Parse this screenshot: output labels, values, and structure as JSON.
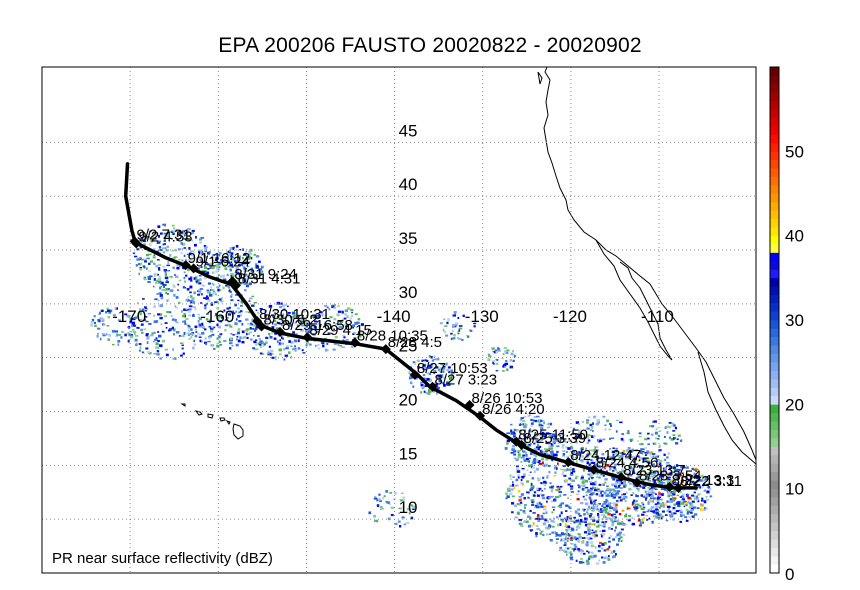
{
  "title": "EPA 200206 FAUSTO 20020822 - 20020902",
  "caption": "PR near surface reflectivity (dBZ)",
  "map": {
    "lon_range": [
      -180,
      -99
    ],
    "lat_range": [
      5,
      52
    ],
    "lon_ticks": [
      -170,
      -160,
      -150,
      -140,
      -130,
      -120,
      -110
    ],
    "lon_tick_labels": [
      "-170",
      "-160",
      "",
      "-140",
      "-130",
      "-120",
      "-110"
    ],
    "lat_ticks": [
      10,
      15,
      20,
      25,
      30,
      35,
      40,
      45
    ],
    "lat_tick_labels": [
      "10",
      "15",
      "20",
      "25",
      "30",
      "35",
      "40",
      "45"
    ],
    "grid": true
  },
  "track": {
    "path": [
      [
        -170.3,
        43.0
      ],
      [
        -170.5,
        40.0
      ],
      [
        -169.8,
        36.8
      ],
      [
        -169.4,
        35.7
      ],
      [
        -166.0,
        34.3
      ],
      [
        -163.5,
        33.5
      ],
      [
        -161.0,
        32.5
      ],
      [
        -158.5,
        31.8
      ],
      [
        -156.8,
        30.0
      ],
      [
        -155.2,
        28.0
      ],
      [
        -153.0,
        27.3
      ],
      [
        -150.0,
        26.8
      ],
      [
        -144.5,
        26.3
      ],
      [
        -141.0,
        25.8
      ],
      [
        -137.5,
        23.5
      ],
      [
        -136.0,
        22.3
      ],
      [
        -133.0,
        21.0
      ],
      [
        -130.5,
        19.6
      ],
      [
        -128.5,
        18.3
      ],
      [
        -126.0,
        17.0
      ],
      [
        -123.5,
        16.0
      ],
      [
        -120.5,
        15.3
      ],
      [
        -117.5,
        14.6
      ],
      [
        -114.0,
        13.8
      ],
      [
        -111.0,
        13.2
      ],
      [
        -108.5,
        12.9
      ],
      [
        -105.8,
        12.9
      ]
    ],
    "points": [
      {
        "label": "9/2 7:31",
        "lon": -169.5,
        "lat": 35.8
      },
      {
        "label": "9/2 4:53",
        "lon": -169.3,
        "lat": 35.6
      },
      {
        "label": "9/1 16:12",
        "lon": -163.7,
        "lat": 33.6
      },
      {
        "label": "9/1 6:24",
        "lon": -162.8,
        "lat": 33.3
      },
      {
        "label": "8/31 9:24",
        "lon": -158.4,
        "lat": 32.1
      },
      {
        "label": "8/31 4:31",
        "lon": -158.0,
        "lat": 31.7
      },
      {
        "label": "8/30 10:31",
        "lon": -155.6,
        "lat": 28.4
      },
      {
        "label": "8/30 6:2",
        "lon": -155.1,
        "lat": 27.9
      },
      {
        "label": "8/29 16:58",
        "lon": -153.0,
        "lat": 27.4
      },
      {
        "label": "8/29 4:15",
        "lon": -149.9,
        "lat": 26.9
      },
      {
        "label": "8/28 10:35",
        "lon": -144.5,
        "lat": 26.4
      },
      {
        "label": "8/28 4:5",
        "lon": -141.0,
        "lat": 25.8
      },
      {
        "label": "8/27 10:53",
        "lon": -137.7,
        "lat": 23.4
      },
      {
        "label": "8/27 3:23",
        "lon": -135.7,
        "lat": 22.3
      },
      {
        "label": "8/26 10:53",
        "lon": -131.5,
        "lat": 20.6
      },
      {
        "label": "8/26 4:20",
        "lon": -130.3,
        "lat": 19.6
      },
      {
        "label": "8/25 11:50",
        "lon": -126.2,
        "lat": 17.2
      },
      {
        "label": "8/25 3:39",
        "lon": -125.6,
        "lat": 16.9
      },
      {
        "label": "8/24 12:47",
        "lon": -120.3,
        "lat": 15.3
      },
      {
        "label": "8/24 4:56",
        "lon": -117.4,
        "lat": 14.6
      },
      {
        "label": "8/23 13:7",
        "lon": -114.3,
        "lat": 13.9
      },
      {
        "label": "8/23 3:54",
        "lon": -112.5,
        "lat": 13.4
      },
      {
        "label": "8/22 13:3",
        "lon": -108.8,
        "lat": 13.0
      },
      {
        "label": "8/22 3:11",
        "lon": -107.8,
        "lat": 12.9
      }
    ]
  },
  "colorbar": {
    "min": 0,
    "max": 60,
    "tick_labels": [
      "0",
      "10",
      "20",
      "30",
      "40",
      "50"
    ],
    "colors": [
      "#ffffff",
      "#f4f4f4",
      "#e8e8e8",
      "#dcdcdc",
      "#d0d0d0",
      "#c4c4c4",
      "#b8b8b8",
      "#acacac",
      "#a0a0a0",
      "#949494",
      "#8c8c8c",
      "#9a9a9a",
      "#a8a8a8",
      "#b4b4b4",
      "#c0c0c0",
      "#8fd08f",
      "#7ac77a",
      "#66be66",
      "#52b552",
      "#3fae3f",
      "#c8dcff",
      "#b4ccf8",
      "#a0bcf0",
      "#8cb0ee",
      "#78a4ec",
      "#6496e8",
      "#5088e4",
      "#3c78e0",
      "#2a66dc",
      "#1a54d8",
      "#1040d0",
      "#0830c8",
      "#0020c0",
      "#0010b4",
      "#0000a8",
      "#1c1cff",
      "#0a0ae0",
      "#0000ff",
      "#ffff40",
      "#ffff00",
      "#ffe600",
      "#ffd200",
      "#ffbe00",
      "#ffaa00",
      "#ff9600",
      "#ff8200",
      "#ff6e00",
      "#ff5a00",
      "#ff4600",
      "#ff3200",
      "#ff1e00",
      "#ff0a00",
      "#f00000",
      "#dc0000",
      "#c80000",
      "#b40000",
      "#a00000",
      "#8c0000",
      "#780000",
      "#640000"
    ]
  },
  "colors": {
    "track": "#000000",
    "coast": "#000000",
    "grid": "#888888"
  }
}
